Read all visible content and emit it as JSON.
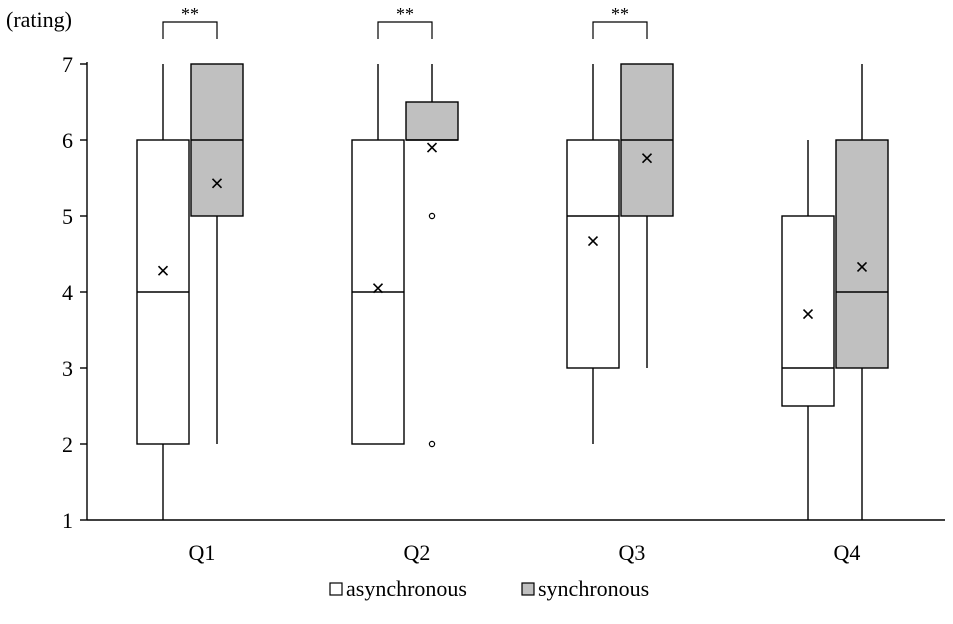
{
  "chart_data": {
    "type": "boxplot",
    "ylabel": "(rating)",
    "ylim": [
      1,
      7
    ],
    "yticks": [
      "1",
      "2",
      "3",
      "4",
      "5",
      "6",
      "7"
    ],
    "categories": [
      "Q1",
      "Q2",
      "Q3",
      "Q4"
    ],
    "series": [
      {
        "name": "asynchronous",
        "color": "#ffffff",
        "boxes": [
          {
            "min": 1,
            "q1": 2,
            "median": 4,
            "q3": 6,
            "max": 7,
            "mean": 4.28,
            "outliers": []
          },
          {
            "min": 2,
            "q1": 2,
            "median": 4,
            "q3": 6,
            "max": 7,
            "mean": 4.05,
            "outliers": []
          },
          {
            "min": 2,
            "q1": 3,
            "median": 5,
            "q3": 6,
            "max": 7,
            "mean": 4.67,
            "outliers": []
          },
          {
            "min": 1,
            "q1": 2.5,
            "median": 3,
            "q3": 5,
            "max": 6,
            "mean": 3.71,
            "outliers": []
          }
        ]
      },
      {
        "name": "synchronous",
        "color": "#c0c0c0",
        "boxes": [
          {
            "min": 2,
            "q1": 5,
            "median": 6,
            "q3": 7,
            "max": 7,
            "mean": 5.43,
            "outliers": []
          },
          {
            "min": 6,
            "q1": 6,
            "median": 6,
            "q3": 6.5,
            "max": 7,
            "mean": 5.9,
            "outliers": [
              5,
              2
            ]
          },
          {
            "min": 3,
            "q1": 5,
            "median": 6,
            "q3": 7,
            "max": 7,
            "mean": 5.76,
            "outliers": []
          },
          {
            "min": 1,
            "q1": 3,
            "median": 4,
            "q3": 6,
            "max": 7,
            "mean": 4.33,
            "outliers": []
          }
        ]
      }
    ],
    "significance": [
      {
        "category": "Q1",
        "label": "**"
      },
      {
        "category": "Q2",
        "label": "**"
      },
      {
        "category": "Q3",
        "label": "**"
      }
    ],
    "legend": {
      "position": "bottom"
    }
  }
}
